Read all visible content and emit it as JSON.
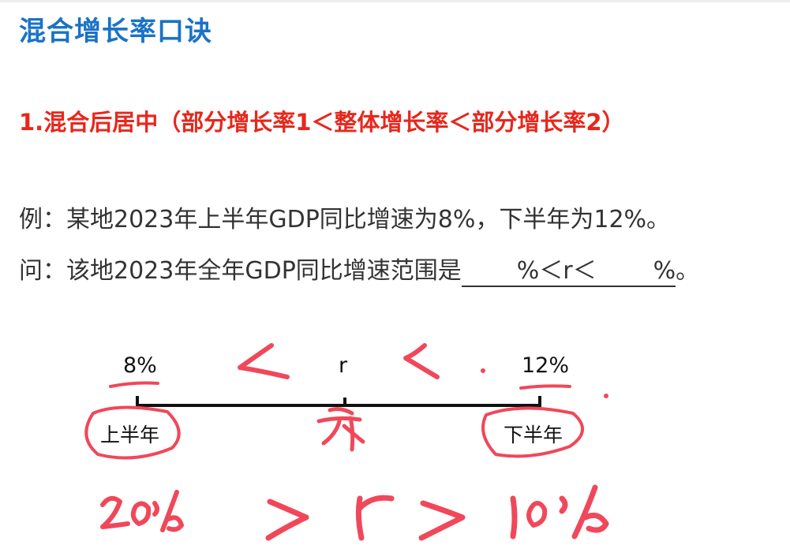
{
  "heading": {
    "title": "混合增长率口诀",
    "subtitle": "1.混合后居中（部分增长率1＜整体增长率＜部分增长率2）"
  },
  "problem": {
    "example": "例：某地2023年上半年GDP同比增速为8%，下半年为12%。",
    "question_prefix": "问：该地2023年全年GDP同比增速范围是",
    "blank_middle": "%＜r＜",
    "blank_end": "%",
    "question_suffix": "。"
  },
  "diagram": {
    "left_value": "8%",
    "middle_value": "r",
    "right_value": "12%",
    "left_label": "上半年",
    "right_label": "下半年"
  },
  "colors": {
    "title": "#1a73c6",
    "subtitle": "#e8271c",
    "handwriting": "#f0485a"
  }
}
